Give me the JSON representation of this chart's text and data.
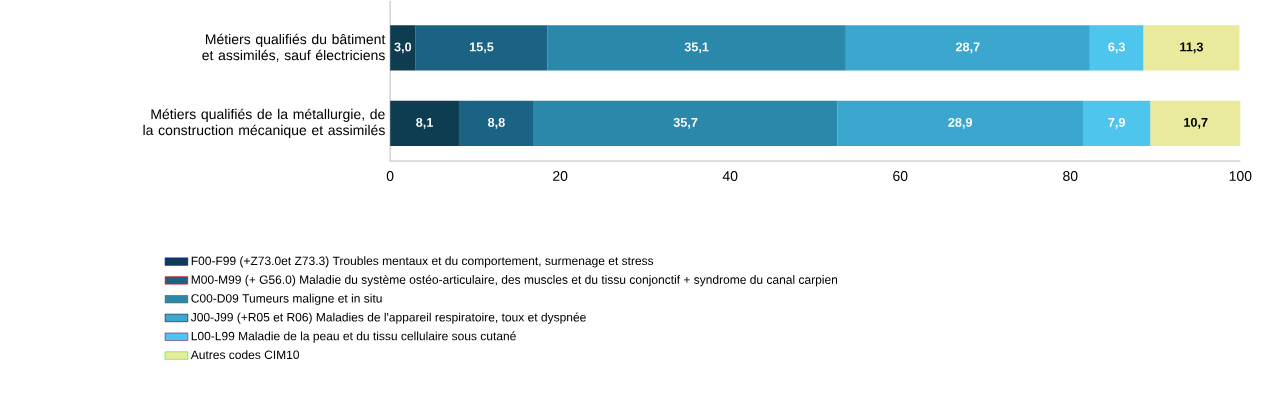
{
  "chart_data": {
    "type": "bar",
    "orientation": "horizontal",
    "stacked": true,
    "categories": [
      "Métiers qualifiés du bâtiment et assimilés, sauf électriciens",
      "Métiers qualifiés de la métallurgie, de la construction mécanique et assimilés"
    ],
    "series": [
      {
        "name": "F00-F99 (+Z73.0et Z73.3) Troubles mentaux et du comportement, surmenage et stress",
        "color": "#0e3d52",
        "values": [
          3.0,
          8.1
        ],
        "value_labels": [
          "3,0",
          "8,1"
        ]
      },
      {
        "name": "M00-M99 (+ G56.0) Maladie du système ostéo-articulaire, des muscles et du tissu conjonctif + syndrome du canal carpien",
        "color": "#1b6384",
        "values": [
          15.5,
          8.8
        ],
        "value_labels": [
          "15,5",
          "8,8"
        ]
      },
      {
        "name": "C00-D09 Tumeurs maligne et in situ",
        "color": "#2a88ab",
        "values": [
          35.1,
          35.7
        ],
        "value_labels": [
          "35,1",
          "35,7"
        ]
      },
      {
        "name": "J00-J99 (+R05 et R06) Maladies de l'appareil respiratoire, toux et dyspnée",
        "color": "#3ba7ce",
        "values": [
          28.7,
          28.9
        ],
        "value_labels": [
          "28,7",
          "28,9"
        ]
      },
      {
        "name": "L00-L99 Maladie de la peau et du tissu cellulaire sous cutané",
        "color": "#4ec5ec",
        "values": [
          6.3,
          7.9
        ],
        "value_labels": [
          "6,3",
          "7,9"
        ]
      },
      {
        "name": "Autres codes CIM10",
        "color": "#eaea9c",
        "values": [
          11.3,
          10.7
        ],
        "value_labels": [
          "11,3",
          "10,7"
        ]
      }
    ],
    "xlim": [
      0,
      100
    ],
    "xticks": [
      0,
      20,
      40,
      60,
      80,
      100
    ],
    "grid": false,
    "legend": "bottom"
  }
}
